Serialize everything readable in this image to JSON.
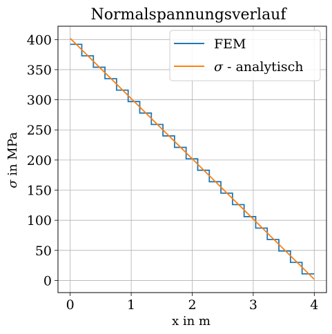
{
  "chart_data": {
    "type": "line",
    "title": "Normalspannungsverlauf",
    "xlabel": "x in m",
    "ylabel_symbol": "σ",
    "ylabel_text": " in MPa",
    "xlim": [
      -0.2,
      4.2
    ],
    "ylim": [
      -20.1,
      422.1
    ],
    "xticks": [
      0,
      1,
      2,
      3,
      4
    ],
    "xtick_labels": [
      "0",
      "1",
      "2",
      "3",
      "4"
    ],
    "yticks": [
      0,
      50,
      100,
      150,
      200,
      250,
      300,
      350,
      400
    ],
    "ytick_labels": [
      "0",
      "50",
      "100",
      "150",
      "200",
      "250",
      "300",
      "350",
      "400"
    ],
    "grid": true,
    "legend_position": "upper right",
    "series": [
      {
        "name": "FEM",
        "style": "steps",
        "color": "#1f77b4",
        "element_length": 0.19,
        "segments": [
          {
            "x0": 0.0,
            "x1": 0.19,
            "value": 392
          },
          {
            "x0": 0.19,
            "x1": 0.38,
            "value": 373
          },
          {
            "x0": 0.38,
            "x1": 0.57,
            "value": 354
          },
          {
            "x0": 0.57,
            "x1": 0.76,
            "value": 335
          },
          {
            "x0": 0.76,
            "x1": 0.95,
            "value": 316
          },
          {
            "x0": 0.95,
            "x1": 1.14,
            "value": 297
          },
          {
            "x0": 1.14,
            "x1": 1.33,
            "value": 278
          },
          {
            "x0": 1.33,
            "x1": 1.52,
            "value": 259
          },
          {
            "x0": 1.52,
            "x1": 1.71,
            "value": 240
          },
          {
            "x0": 1.71,
            "x1": 1.9,
            "value": 221
          },
          {
            "x0": 1.9,
            "x1": 2.09,
            "value": 202
          },
          {
            "x0": 2.09,
            "x1": 2.28,
            "value": 183
          },
          {
            "x0": 2.28,
            "x1": 2.47,
            "value": 164
          },
          {
            "x0": 2.47,
            "x1": 2.66,
            "value": 145
          },
          {
            "x0": 2.66,
            "x1": 2.85,
            "value": 126
          },
          {
            "x0": 2.85,
            "x1": 3.04,
            "value": 106
          },
          {
            "x0": 3.04,
            "x1": 3.23,
            "value": 87
          },
          {
            "x0": 3.23,
            "x1": 3.42,
            "value": 68
          },
          {
            "x0": 3.42,
            "x1": 3.61,
            "value": 49
          },
          {
            "x0": 3.61,
            "x1": 3.8,
            "value": 30
          },
          {
            "x0": 3.8,
            "x1": 4.0,
            "value": 11
          }
        ]
      },
      {
        "name_symbol": "σ",
        "name_text": " - analytisch",
        "style": "line",
        "color": "#ff7f0e",
        "x": [
          0,
          4
        ],
        "y": [
          402,
          2
        ]
      }
    ]
  }
}
